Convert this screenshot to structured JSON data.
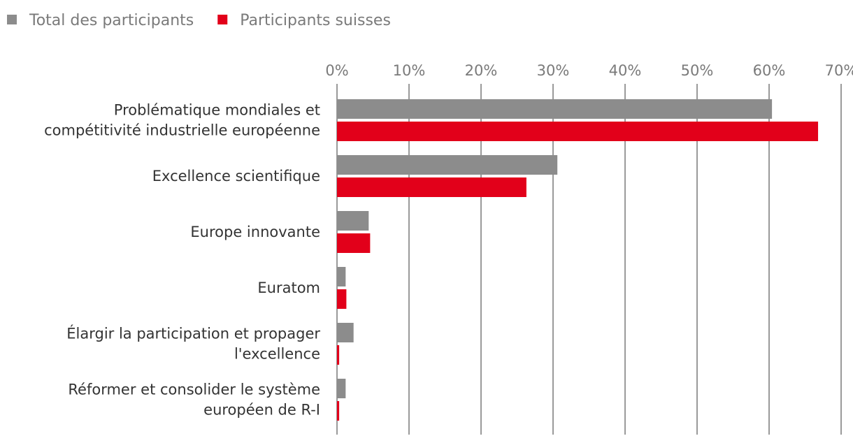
{
  "chart_data": {
    "type": "bar",
    "orientation": "horizontal",
    "title": "",
    "xlabel": "",
    "ylabel": "",
    "xlim": [
      0,
      70
    ],
    "ticks": [
      0,
      10,
      20,
      30,
      40,
      50,
      60,
      70
    ],
    "tick_labels": [
      "0%",
      "10%",
      "20%",
      "30%",
      "40%",
      "50%",
      "60%",
      "70%"
    ],
    "axis_position": "top",
    "grid": true,
    "legend_placement": "top-left",
    "categories": [
      [
        "Problématique mondiales et",
        "compétitivité industrielle européenne"
      ],
      [
        "Excellence scientifique"
      ],
      [
        "Europe innovante"
      ],
      [
        "Euratom"
      ],
      [
        "Élargir la participation et propager",
        "l'excellence"
      ],
      [
        "Réformer et consolider le système",
        "européen de R-I"
      ]
    ],
    "series": [
      {
        "name": "Total des participants",
        "color": "#8c8c8c",
        "values": [
          60.4,
          30.6,
          4.4,
          1.2,
          2.3,
          1.2
        ]
      },
      {
        "name": "Participants suisses",
        "color": "#e2001a",
        "values": [
          66.8,
          26.3,
          4.6,
          1.3,
          0.3,
          0.3
        ]
      }
    ]
  }
}
